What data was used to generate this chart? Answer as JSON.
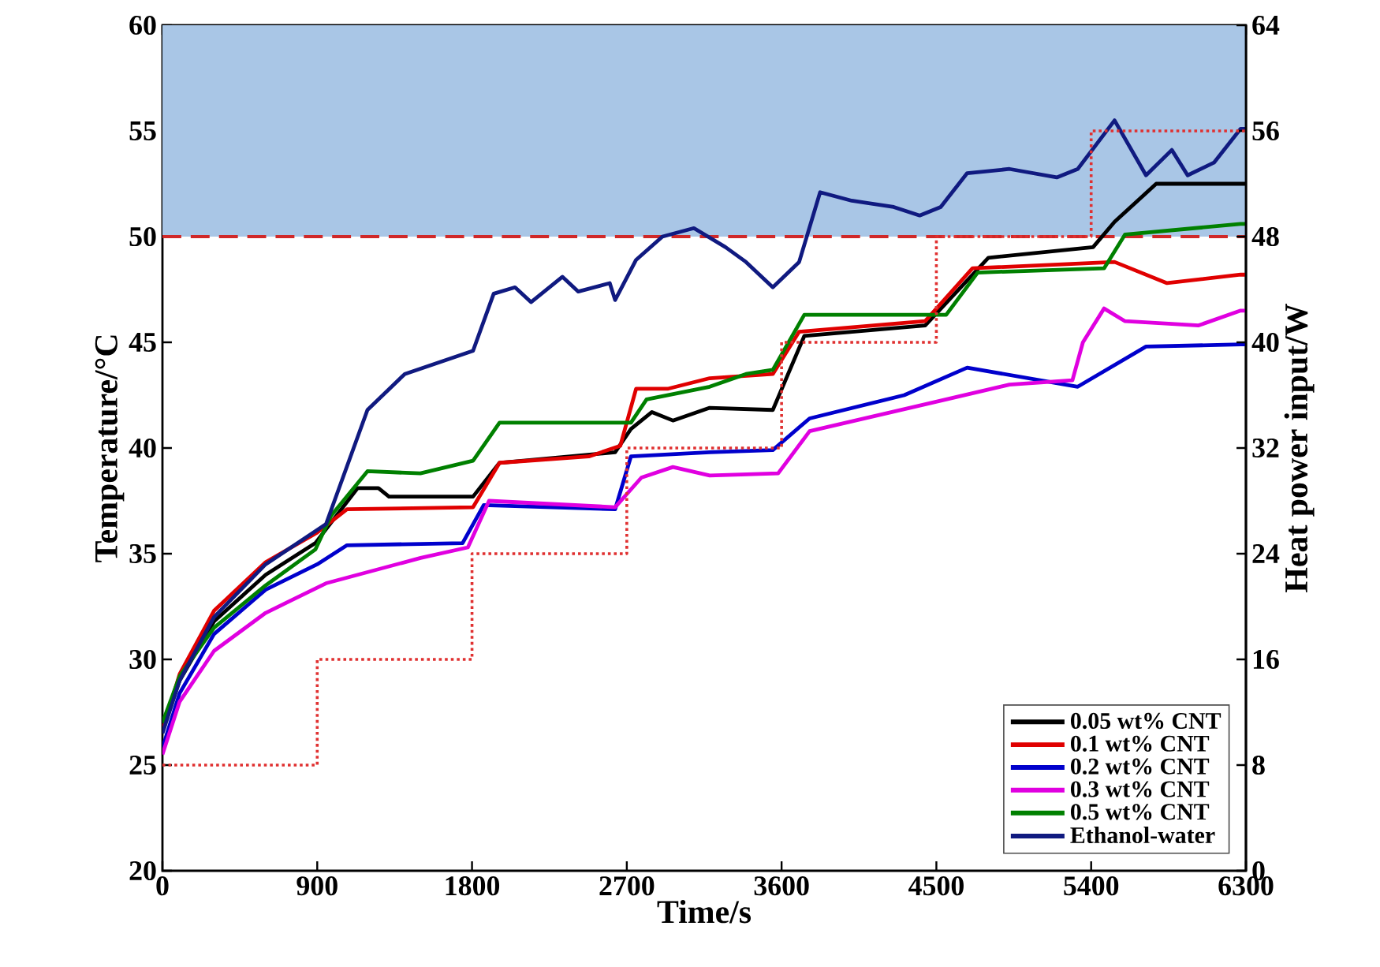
{
  "chart_data": {
    "type": "line",
    "xlabel": "Time/s",
    "ylabel": "Temperature/°C",
    "y2label": "Heat power input/W",
    "xlim": [
      0,
      6300
    ],
    "xticks": [
      0,
      900,
      1800,
      2700,
      3600,
      4500,
      5400,
      6300
    ],
    "ylim": [
      20,
      60
    ],
    "yticks": [
      20,
      25,
      30,
      35,
      40,
      45,
      50,
      55,
      60
    ],
    "y2lim": [
      0,
      64
    ],
    "y2ticks": [
      0,
      8,
      16,
      24,
      32,
      40,
      48,
      56,
      64
    ],
    "legend": "bottom right",
    "grid": false,
    "bands": [
      {
        "axis": "y",
        "from": 50,
        "to": 60,
        "color": "#a9c6e6"
      }
    ],
    "ref_lines": [
      {
        "axis": "y",
        "value": 50,
        "color": "#d02828",
        "line_style": "dashed"
      }
    ],
    "series": [
      {
        "name": "0.05 wt% CNT",
        "color": "#000000",
        "x": [
          0,
          100,
          300,
          600,
          889,
          1134,
          1256,
          1317,
          1806,
          1960,
          2632,
          2724,
          2846,
          2968,
          3182,
          3549,
          3732,
          4435,
          4802,
          5411,
          5536,
          5778,
          6269,
          6300
        ],
        "values": [
          26.8,
          29,
          31.8,
          34,
          35.5,
          38.1,
          38.1,
          37.7,
          37.7,
          39.3,
          39.8,
          40.9,
          41.7,
          41.3,
          41.9,
          41.8,
          45.3,
          45.8,
          49.0,
          49.5,
          50.7,
          52.5,
          52.5,
          52.5
        ]
      },
      {
        "name": "0.1 wt% CNT",
        "color": "#e00000",
        "x": [
          0,
          100,
          300,
          600,
          900,
          1073,
          1806,
          1960,
          2479,
          2662,
          2754,
          2937,
          3182,
          3549,
          3702,
          4435,
          4710,
          5536,
          5841,
          6269,
          6300
        ],
        "values": [
          26.6,
          29.3,
          32.3,
          34.6,
          36.0,
          37.1,
          37.2,
          39.3,
          39.6,
          40.1,
          42.8,
          42.8,
          43.3,
          43.5,
          45.5,
          46.0,
          48.5,
          48.8,
          47.8,
          48.2,
          48.2
        ]
      },
      {
        "name": "0.2 wt% CNT",
        "color": "#0000cc",
        "x": [
          0,
          100,
          300,
          600,
          900,
          1073,
          1745,
          1868,
          2632,
          2724,
          3182,
          3549,
          3763,
          4313,
          4679,
          5322,
          5719,
          6269,
          6300
        ],
        "values": [
          25.8,
          28.4,
          31.2,
          33.3,
          34.5,
          35.4,
          35.5,
          37.3,
          37.1,
          39.6,
          39.8,
          39.9,
          41.4,
          42.5,
          43.8,
          42.9,
          44.8,
          44.9,
          44.9
        ]
      },
      {
        "name": "0.3 wt% CNT",
        "color": "#e000e0",
        "x": [
          0,
          100,
          300,
          600,
          951,
          1501,
          1776,
          1899,
          2632,
          2785,
          2968,
          3182,
          3580,
          3763,
          4557,
          4925,
          5291,
          5352,
          5475,
          5597,
          6025,
          6269,
          6300
        ],
        "values": [
          25.5,
          28,
          30.4,
          32.2,
          33.6,
          34.8,
          35.3,
          37.5,
          37.2,
          38.6,
          39.1,
          38.7,
          38.8,
          40.8,
          42.3,
          43.0,
          43.2,
          45.0,
          46.6,
          46.0,
          45.8,
          46.5,
          46.5
        ]
      },
      {
        "name": "0.5 wt% CNT",
        "color": "#008000",
        "x": [
          0,
          100,
          300,
          600,
          889,
          981,
          1192,
          1500,
          1806,
          1960,
          2724,
          2815,
          3182,
          3393,
          3549,
          3732,
          4557,
          4740,
          5475,
          5597,
          6269,
          6300
        ],
        "values": [
          27,
          29.2,
          31.5,
          33.5,
          35.2,
          36.8,
          38.9,
          38.8,
          39.4,
          41.2,
          41.2,
          42.3,
          42.9,
          43.5,
          43.7,
          46.3,
          46.3,
          48.3,
          48.5,
          50.1,
          50.6,
          50.6
        ]
      },
      {
        "name": "Ethanol-water",
        "color": "#101a80",
        "x": [
          0,
          100,
          300,
          600,
          951,
          1192,
          1409,
          1806,
          1926,
          2050,
          2143,
          2326,
          2418,
          2601,
          2632,
          2754,
          2907,
          3090,
          3274,
          3393,
          3549,
          3702,
          3824,
          4008,
          4252,
          4403,
          4525,
          4679,
          4925,
          5200,
          5322,
          5536,
          5719,
          5869,
          5961,
          6114,
          6269,
          6300
        ],
        "values": [
          26.5,
          29,
          32,
          34.5,
          36.4,
          41.8,
          43.5,
          44.6,
          47.3,
          47.6,
          46.9,
          48.1,
          47.4,
          47.8,
          47.0,
          48.9,
          50.0,
          50.4,
          49.5,
          48.8,
          47.6,
          48.8,
          52.1,
          51.7,
          51.4,
          51.0,
          51.4,
          53.0,
          53.2,
          52.8,
          53.2,
          55.5,
          52.9,
          54.1,
          52.9,
          53.5,
          55.1,
          55.1
        ]
      },
      {
        "type": "step",
        "axis": "y2",
        "color": "#e03030",
        "line_style": "dotted",
        "x": [
          0,
          900,
          1800,
          2700,
          3600,
          4500,
          5400,
          6300
        ],
        "values": [
          8,
          16,
          24,
          32,
          40,
          48,
          56,
          56
        ]
      }
    ]
  }
}
